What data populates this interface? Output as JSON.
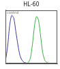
{
  "chart_data": {
    "type": "line",
    "title": "HL-60",
    "annotations": [
      "control"
    ],
    "x": [
      0,
      4,
      8,
      12,
      16,
      20,
      24,
      28,
      32,
      36,
      40,
      44,
      48,
      52,
      56,
      60,
      64,
      68,
      72,
      76,
      80,
      84,
      88,
      92,
      96,
      100
    ],
    "series": [
      {
        "color": "#3b3b9e",
        "values": [
          5,
          30,
          70,
          90,
          85,
          60,
          35,
          15,
          6,
          2,
          1,
          0,
          0,
          0,
          0,
          0,
          0,
          0,
          0,
          0,
          0,
          0,
          0,
          0,
          0,
          0
        ]
      },
      {
        "color": "#3cb043",
        "values": [
          0,
          0,
          0,
          0,
          0,
          0,
          0,
          0,
          0,
          0,
          0,
          2,
          10,
          35,
          70,
          88,
          80,
          50,
          20,
          6,
          2,
          0,
          0,
          0,
          0,
          0
        ]
      }
    ],
    "xlim": [
      0,
      100
    ],
    "ylim": [
      0,
      100
    ],
    "tick_labels": false,
    "grid": false
  }
}
